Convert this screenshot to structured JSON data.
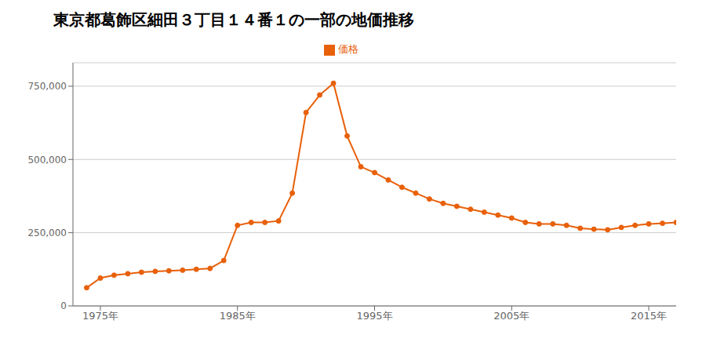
{
  "chart_data": {
    "type": "line",
    "title": "東京都葛飾区細田３丁目１４番１の一部の地価推移",
    "x": [
      1974,
      1975,
      1976,
      1977,
      1978,
      1979,
      1980,
      1981,
      1982,
      1983,
      1984,
      1985,
      1986,
      1987,
      1988,
      1989,
      1990,
      1991,
      1992,
      1993,
      1994,
      1995,
      1996,
      1997,
      1998,
      1999,
      2000,
      2001,
      2002,
      2003,
      2004,
      2005,
      2006,
      2007,
      2008,
      2009,
      2010,
      2011,
      2012,
      2013,
      2014,
      2015,
      2016,
      2017
    ],
    "series": [
      {
        "name": "価格",
        "color": "#e8600a",
        "marker": "circle",
        "values": [
          62000,
          95000,
          105000,
          110000,
          115000,
          118000,
          120000,
          122000,
          125000,
          128000,
          155000,
          275000,
          285000,
          285000,
          290000,
          385000,
          660000,
          720000,
          760000,
          580000,
          475000,
          455000,
          430000,
          405000,
          385000,
          365000,
          350000,
          340000,
          330000,
          320000,
          310000,
          300000,
          285000,
          280000,
          280000,
          275000,
          265000,
          262000,
          260000,
          268000,
          275000,
          280000,
          282000,
          285000
        ]
      }
    ],
    "xlim": [
      1973,
      2017
    ],
    "ylim": [
      0,
      830000
    ],
    "xticks": [
      {
        "value": 1975,
        "label": "1975年"
      },
      {
        "value": 1985,
        "label": "1985年"
      },
      {
        "value": 1995,
        "label": "1995年"
      },
      {
        "value": 2005,
        "label": "2005年"
      },
      {
        "value": 2015,
        "label": "2015年"
      }
    ],
    "yticks": [
      0,
      {
        "value": 250000,
        "label": "250,000"
      },
      {
        "value": 500000,
        "label": "500,000"
      },
      {
        "value": 750000,
        "label": "750,000"
      }
    ],
    "grid": "y",
    "legend": "top"
  }
}
